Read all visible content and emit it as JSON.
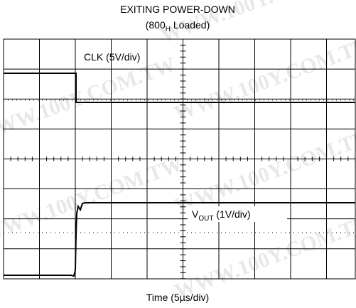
{
  "title": "EXITING POWER-DOWN",
  "subtitle": {
    "prefix": "(800",
    "sub": "H",
    "suffix": " Loaded)"
  },
  "clk_label": "CLK (5V/div)",
  "vout_label": {
    "main": "V",
    "sub": "OUT",
    "suffix": " (1V/div)"
  },
  "x_label": "Time (5µs/div)",
  "watermark": "WWW.100Y.COM.TW"
}
